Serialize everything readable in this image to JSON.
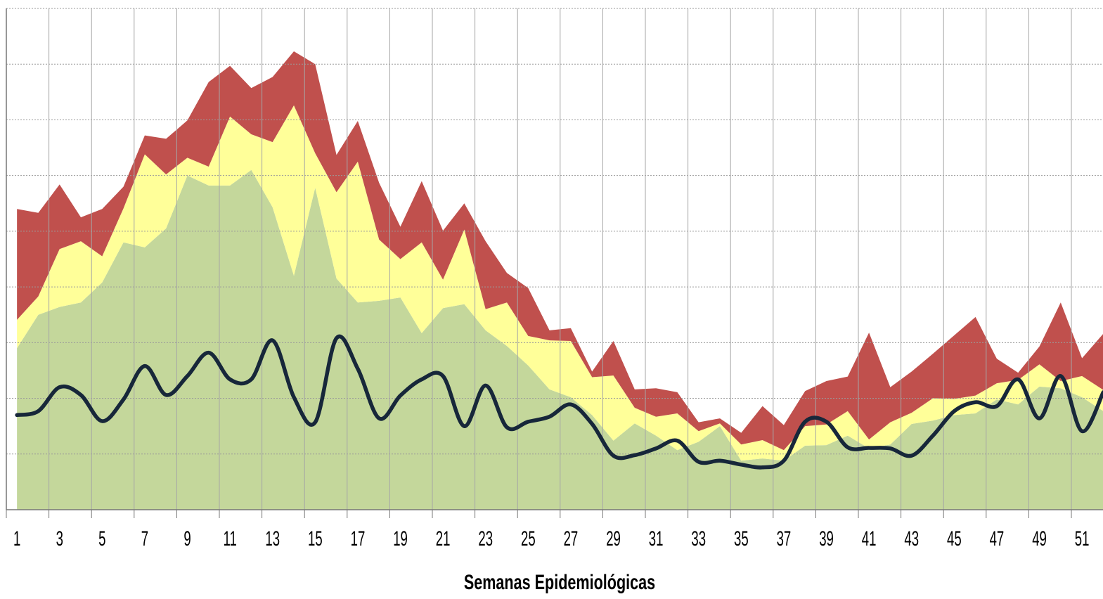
{
  "chart_data": {
    "type": "endemic-channel",
    "x_label": "Semanas Epidemiológicas",
    "categories": [
      "1",
      null,
      "3",
      null,
      "5",
      null,
      "7",
      null,
      "9",
      null,
      "11",
      null,
      "13",
      null,
      "15",
      null,
      "17",
      null,
      "19",
      null,
      "21",
      null,
      "23",
      null,
      "25",
      null,
      "27",
      null,
      "29",
      null,
      "31",
      null,
      "33",
      null,
      "35",
      null,
      "37",
      null,
      "39",
      null,
      "41",
      null,
      "43",
      null,
      "45",
      null,
      "47",
      null,
      "49",
      null,
      "51",
      null
    ],
    "ylim": [
      0,
      9
    ],
    "yticks": [
      0,
      1,
      2,
      3,
      4,
      5,
      6,
      7,
      8,
      9
    ],
    "grid": true,
    "areas": [
      {
        "color": "#c4d79b",
        "values": [
          2.9,
          3.5,
          3.64,
          3.72,
          4.08,
          4.8,
          4.71,
          5.05,
          6.0,
          5.82,
          5.82,
          6.1,
          5.43,
          4.2,
          5.78,
          4.15,
          3.72,
          3.75,
          3.81,
          3.17,
          3.62,
          3.69,
          3.22,
          2.94,
          2.59,
          2.16,
          2.02,
          1.7,
          1.24,
          1.55,
          1.33,
          1.07,
          1.22,
          1.5,
          0.88,
          0.92,
          0.88,
          1.15,
          1.16,
          1.33,
          1.1,
          1.17,
          1.54,
          1.6,
          1.7,
          1.73,
          1.98,
          1.89,
          2.21,
          2.18,
          2.02,
          1.77
        ]
      },
      {
        "color": "#ffff99",
        "values": [
          0.51,
          0.33,
          1.04,
          1.1,
          0.47,
          0.61,
          1.67,
          0.97,
          0.32,
          0.34,
          1.24,
          0.64,
          1.17,
          3.06,
          0.62,
          1.55,
          2.53,
          1.1,
          0.69,
          1.63,
          0.51,
          1.34,
          0.38,
          0.78,
          0.53,
          0.88,
          1.01,
          0.68,
          1.17,
          0.28,
          0.34,
          0.66,
          0.19,
          0.05,
          0.29,
          0.33,
          0.19,
          0.35,
          0.37,
          0.44,
          0.16,
          0.4,
          0.2,
          0.4,
          0.29,
          0.32,
          0.29,
          0.44,
          0.4,
          0.13,
          0.38,
          0.38
        ]
      },
      {
        "color": "#c0504d",
        "values": [
          1.99,
          1.5,
          1.16,
          0.43,
          0.85,
          0.39,
          0.34,
          0.64,
          0.67,
          1.52,
          0.91,
          0.83,
          1.17,
          0.97,
          1.6,
          0.67,
          0.73,
          1.02,
          0.58,
          1.1,
          0.88,
          0.47,
          1.22,
          0.53,
          0.86,
          0.18,
          0.23,
          0.1,
          0.62,
          0.33,
          0.51,
          0.38,
          0.16,
          0.09,
          0.21,
          0.61,
          0.45,
          0.63,
          0.78,
          0.62,
          1.92,
          0.63,
          0.74,
          0.8,
          1.14,
          1.41,
          0.44,
          0.13,
          0.32,
          1.41,
          0.32,
          1.01
        ]
      }
    ],
    "line": {
      "color": "#17273a",
      "values": [
        1.7,
        1.77,
        2.2,
        2.06,
        1.59,
        1.98,
        2.58,
        2.06,
        2.4,
        2.82,
        2.34,
        2.34,
        3.04,
        2.02,
        1.57,
        3.08,
        2.53,
        1.64,
        2.05,
        2.34,
        2.4,
        1.5,
        2.23,
        1.48,
        1.58,
        1.67,
        1.89,
        1.54,
        0.97,
        0.98,
        1.1,
        1.24,
        0.86,
        0.88,
        0.81,
        0.76,
        0.88,
        1.58,
        1.58,
        1.12,
        1.11,
        1.1,
        0.97,
        1.33,
        1.77,
        1.93,
        1.86,
        2.34,
        1.64,
        2.4,
        1.41,
        2.11
      ]
    }
  }
}
